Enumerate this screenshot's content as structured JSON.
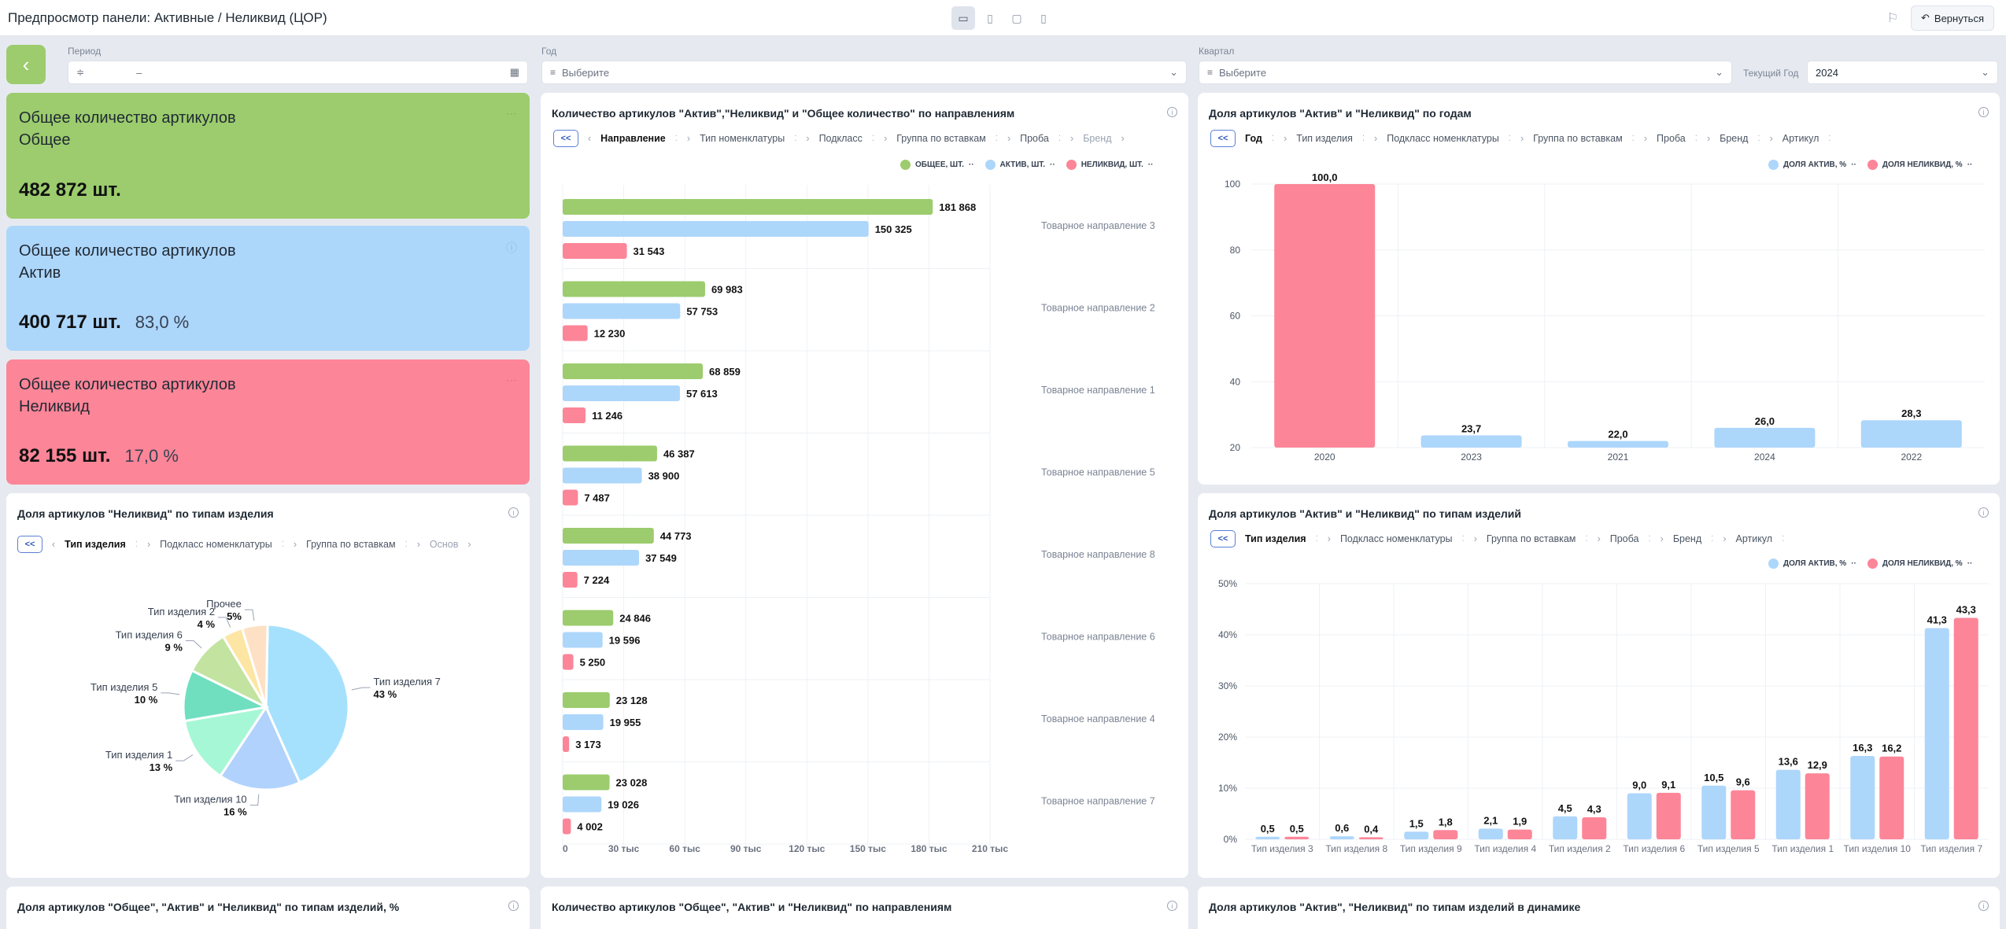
{
  "header": {
    "title": "Предпросмотр панели: Активные / Неликвид (ЦОР)",
    "back_label": "Вернуться"
  },
  "filters": {
    "period": {
      "label": "Период",
      "value": "–"
    },
    "year": {
      "label": "Год",
      "placeholder": "Выберите"
    },
    "quarter": {
      "label": "Квартал",
      "placeholder": "Выберите"
    },
    "current_year": {
      "label": "Текущий Год",
      "value": "2024"
    }
  },
  "kpi": [
    {
      "title": "Общее количество артикулов Общее",
      "value": "482 872 шт.",
      "percent": "",
      "color": "#9ccc6d"
    },
    {
      "title": "Общее количество артикулов Актив",
      "value": "400 717 шт.",
      "percent": "83,0 %",
      "color": "#add6fb"
    },
    {
      "title": "Общее количество артикулов Неликвид",
      "value": "82 155 шт.",
      "percent": "17,0 %",
      "color": "#fd8598"
    }
  ],
  "colors": {
    "general": "#9ccc6d",
    "active": "#add6fb",
    "illiquid": "#fd8598"
  },
  "pie_card": {
    "title": "Доля артикулов \"Неликвид\" по типам изделия",
    "crumbs": [
      "Тип изделия",
      "Подкласс номенклатуры",
      "Группа по вставкам",
      "Основ"
    ],
    "chart_data": {
      "type": "pie",
      "slices": [
        {
          "label": "Тип изделия 7",
          "value": 43,
          "text": "43 %",
          "color": "#a5e1fd"
        },
        {
          "label": "Тип изделия 10",
          "value": 16,
          "text": "16 %",
          "color": "#b0d2fd"
        },
        {
          "label": "Тип изделия 1",
          "value": 13,
          "text": "13 %",
          "color": "#a6f7d6"
        },
        {
          "label": "Тип изделия 5",
          "value": 10,
          "text": "10 %",
          "color": "#70dfc0"
        },
        {
          "label": "Тип изделия 6",
          "value": 9,
          "text": "9 %",
          "color": "#c3e3a1"
        },
        {
          "label": "Тип изделия 2",
          "value": 4,
          "text": "4 %",
          "color": "#fde6a3"
        },
        {
          "label": "Прочее",
          "value": 5,
          "text": "5%",
          "color": "#fee0c4"
        }
      ]
    }
  },
  "bar_card": {
    "title": "Количество артикулов \"Актив\",\"Неликвид\" и \"Общее количество\" по направлениям",
    "crumbs": [
      "Направление",
      "Тип номенклатуры",
      "Подкласс",
      "Группа по вставкам",
      "Проба",
      "Бренд"
    ],
    "legend": [
      "ОБЩЕЕ, ШТ.",
      "АКТИВ, ШТ.",
      "НЕЛИКВИД, ШТ."
    ],
    "chart_data": {
      "type": "bar",
      "orientation": "horizontal",
      "categories": [
        "Товарное направление 3",
        "Товарное направление 2",
        "Товарное направление 1",
        "Товарное направление 5",
        "Товарное направление 8",
        "Товарное направление 6",
        "Товарное направление 4",
        "Товарное направление 7"
      ],
      "series": [
        {
          "name": "ОБЩЕЕ, ШТ.",
          "values": [
            181868,
            69983,
            68859,
            46387,
            44773,
            24846,
            23128,
            23028
          ],
          "labels": [
            "181 868",
            "69 983",
            "68 859",
            "46 387",
            "44 773",
            "24 846",
            "23 128",
            "23 028"
          ]
        },
        {
          "name": "АКТИВ, ШТ.",
          "values": [
            150325,
            57753,
            57613,
            38900,
            37549,
            19596,
            19955,
            19026
          ],
          "labels": [
            "150 325",
            "57 753",
            "57 613",
            "38 900",
            "37 549",
            "19 596",
            "19 955",
            "19 026"
          ]
        },
        {
          "name": "НЕЛИКВИД, ШТ.",
          "values": [
            31543,
            12230,
            11246,
            7487,
            7224,
            5250,
            3173,
            4002
          ],
          "labels": [
            "31 543",
            "12 230",
            "11 246",
            "7 487",
            "7 224",
            "5 250",
            "3 173",
            "4 002"
          ]
        }
      ],
      "xlim": [
        0,
        210000
      ],
      "xticks": [
        "0",
        "30 тыс",
        "60 тыс",
        "90 тыс",
        "120 тыс",
        "150 тыс",
        "180 тыс",
        "210 тыс"
      ]
    }
  },
  "year_card": {
    "title": "Доля артикулов \"Актив\" и \"Неликвид\" по годам",
    "crumbs": [
      "Год",
      "Тип изделия",
      "Подкласс номенклатуры",
      "Группа по вставкам",
      "Проба",
      "Бренд",
      "Артикул"
    ],
    "legend": [
      "ДОЛЯ АКТИВ, %",
      "ДОЛЯ НЕЛИКВИД, %"
    ],
    "chart_data": {
      "type": "bar",
      "categories": [
        "2020",
        "2023",
        "2021",
        "2024",
        "2022"
      ],
      "values": [
        100.0,
        23.7,
        22.0,
        26.0,
        28.3
      ],
      "labels": [
        "100,0",
        "23,7",
        "22,0",
        "26,0",
        "28,3"
      ],
      "series_of_bar": [
        "ДОЛЯ НЕЛИКВИД, %",
        "ДОЛЯ АКТИВ, %",
        "ДОЛЯ АКТИВ, %",
        "ДОЛЯ АКТИВ, %",
        "ДОЛЯ АКТИВ, %"
      ],
      "ylim": [
        20,
        100
      ],
      "yticks": [
        "20",
        "40",
        "60",
        "80",
        "100"
      ]
    }
  },
  "type_card": {
    "title": "Доля артикулов \"Актив\" и \"Неликвид\" по типам изделий",
    "crumbs": [
      "Тип изделия",
      "Подкласс номенклатуры",
      "Группа по вставкам",
      "Проба",
      "Бренд",
      "Артикул"
    ],
    "legend": [
      "ДОЛЯ АКТИВ, %",
      "ДОЛЯ НЕЛИКВИД, %"
    ],
    "chart_data": {
      "type": "bar",
      "categories": [
        "Тип изделия 3",
        "Тип изделия 8",
        "Тип изделия 9",
        "Тип изделия 4",
        "Тип изделия 2",
        "Тип изделия 6",
        "Тип изделия 5",
        "Тип изделия 1",
        "Тип изделия 10",
        "Тип изделия 7"
      ],
      "series": [
        {
          "name": "ДОЛЯ АКТИВ, %",
          "values": [
            0.5,
            0.6,
            1.5,
            2.1,
            4.5,
            9.0,
            10.5,
            13.6,
            16.3,
            41.3
          ],
          "labels": [
            "0,5",
            "0,6",
            "1,5",
            "2,1",
            "4,5",
            "9,0",
            "10,5",
            "13,6",
            "16,3",
            "41,3"
          ]
        },
        {
          "name": "ДОЛЯ НЕЛИКВИД, %",
          "values": [
            0.5,
            0.4,
            1.8,
            1.9,
            4.3,
            9.1,
            9.6,
            12.9,
            16.2,
            43.3
          ],
          "labels": [
            "0,5",
            "0,4",
            "1,8",
            "1,9",
            "4,3",
            "9,1",
            "9,6",
            "12,9",
            "16,2",
            "43,3"
          ]
        }
      ],
      "ylim": [
        0,
        50
      ],
      "yticks": [
        "0%",
        "10%",
        "20%",
        "30%",
        "40%",
        "50%"
      ]
    }
  },
  "bottom_cards": [
    {
      "title": "Доля артикулов \"Общее\", \"Актив\" и \"Неликвид\" по типам изделий, %"
    },
    {
      "title": "Количество артикулов \"Общее\", \"Актив\" и \"Неликвид\" по направлениям"
    },
    {
      "title": "Доля артикулов \"Актив\", \"Неликвид\" по типам изделий в динамике"
    }
  ]
}
